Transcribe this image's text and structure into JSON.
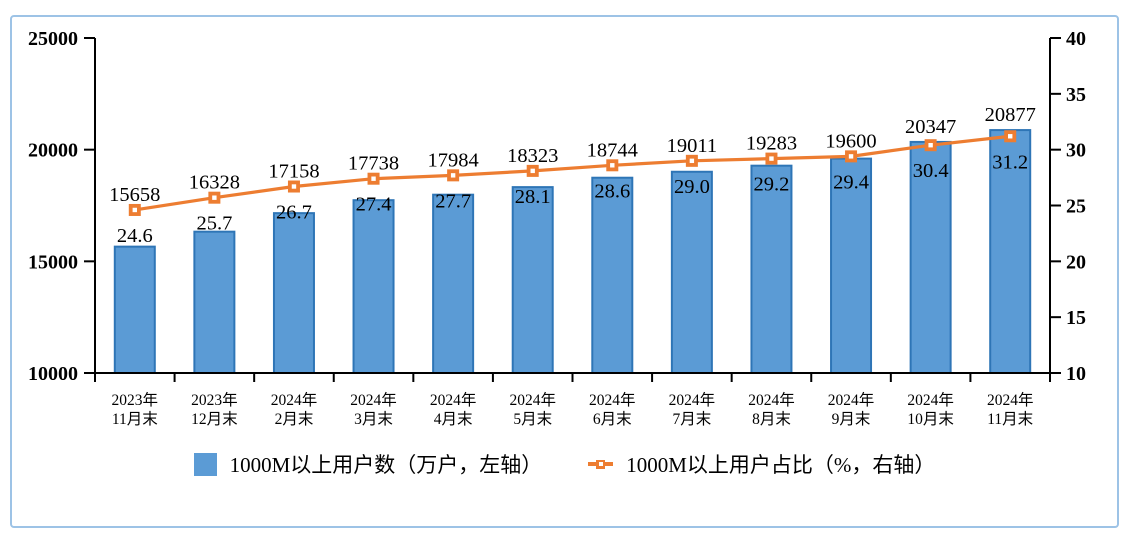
{
  "panel": {
    "border_color": "#9DC3E6",
    "background": "#FFFFFF"
  },
  "chart_data": {
    "type": "combo-bar-line",
    "categories": [
      {
        "line1": "2023年",
        "line2": "11月末"
      },
      {
        "line1": "2023年",
        "line2": "12月末"
      },
      {
        "line1": "2024年",
        "line2": "2月末"
      },
      {
        "line1": "2024年",
        "line2": "3月末"
      },
      {
        "line1": "2024年",
        "line2": "4月末"
      },
      {
        "line1": "2024年",
        "line2": "5月末"
      },
      {
        "line1": "2024年",
        "line2": "6月末"
      },
      {
        "line1": "2024年",
        "line2": "7月末"
      },
      {
        "line1": "2024年",
        "line2": "8月末"
      },
      {
        "line1": "2024年",
        "line2": "9月末"
      },
      {
        "line1": "2024年",
        "line2": "10月末"
      },
      {
        "line1": "2024年",
        "line2": "11月末"
      }
    ],
    "series": [
      {
        "name": "1000M以上用户数（万户，左轴）",
        "type": "bar",
        "axis": "left",
        "values": [
          15658,
          16328,
          17158,
          17738,
          17984,
          18323,
          18744,
          19011,
          19283,
          19600,
          20347,
          20877
        ],
        "color": "#5B9BD5",
        "border_color": "#2E75B6"
      },
      {
        "name": "1000M以上用户占比（%，右轴）",
        "type": "line",
        "axis": "right",
        "values": [
          24.6,
          25.7,
          26.7,
          27.4,
          27.7,
          28.1,
          28.6,
          29.0,
          29.2,
          29.4,
          30.4,
          31.2
        ],
        "color": "#ED7D31",
        "marker": "square-with-white-dot"
      }
    ],
    "left_axis": {
      "min": 10000,
      "max": 25000,
      "ticks": [
        10000,
        15000,
        20000,
        25000
      ]
    },
    "right_axis": {
      "min": 10,
      "max": 40,
      "ticks": [
        10,
        15,
        20,
        25,
        30,
        35,
        40
      ]
    },
    "axis_color": "#000000",
    "grid": "off",
    "legend_position": "bottom",
    "data_labels": "on"
  }
}
